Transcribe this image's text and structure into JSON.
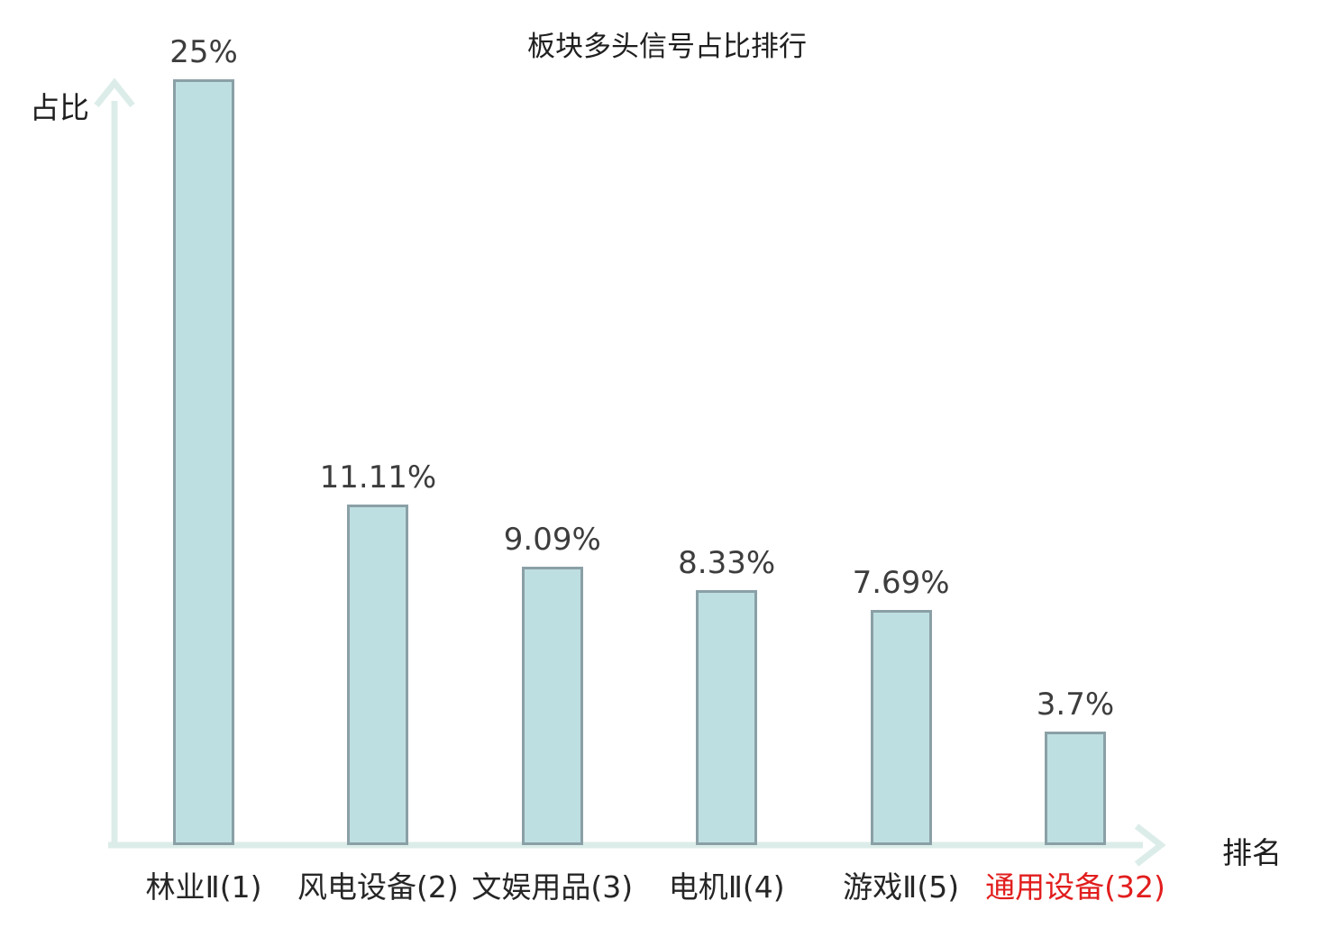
{
  "chart_data": {
    "type": "bar",
    "title": "板块多头信号占比排行",
    "xlabel": "排名",
    "ylabel": "占比",
    "categories": [
      "林业Ⅱ(1)",
      "风电设备(2)",
      "文娱用品(3)",
      "电机Ⅱ(4)",
      "游戏Ⅱ(5)",
      "通用设备(32)"
    ],
    "values": [
      25,
      11.11,
      9.09,
      8.33,
      7.69,
      3.7
    ],
    "value_labels": [
      "25%",
      "11.11%",
      "9.09%",
      "8.33%",
      "7.69%",
      "3.7%"
    ],
    "highlight_index": 5,
    "ylim": [
      0,
      25
    ],
    "grid": false,
    "legend": false,
    "colors": {
      "bar_fill": "#bedfe2",
      "bar_border": "#8aa0a6",
      "axis": "#dcede9",
      "value_text": "#3d3d3d",
      "category_text": "#262626",
      "highlight_text": "#e21d1d",
      "title_text": "#1f1f1f"
    }
  }
}
